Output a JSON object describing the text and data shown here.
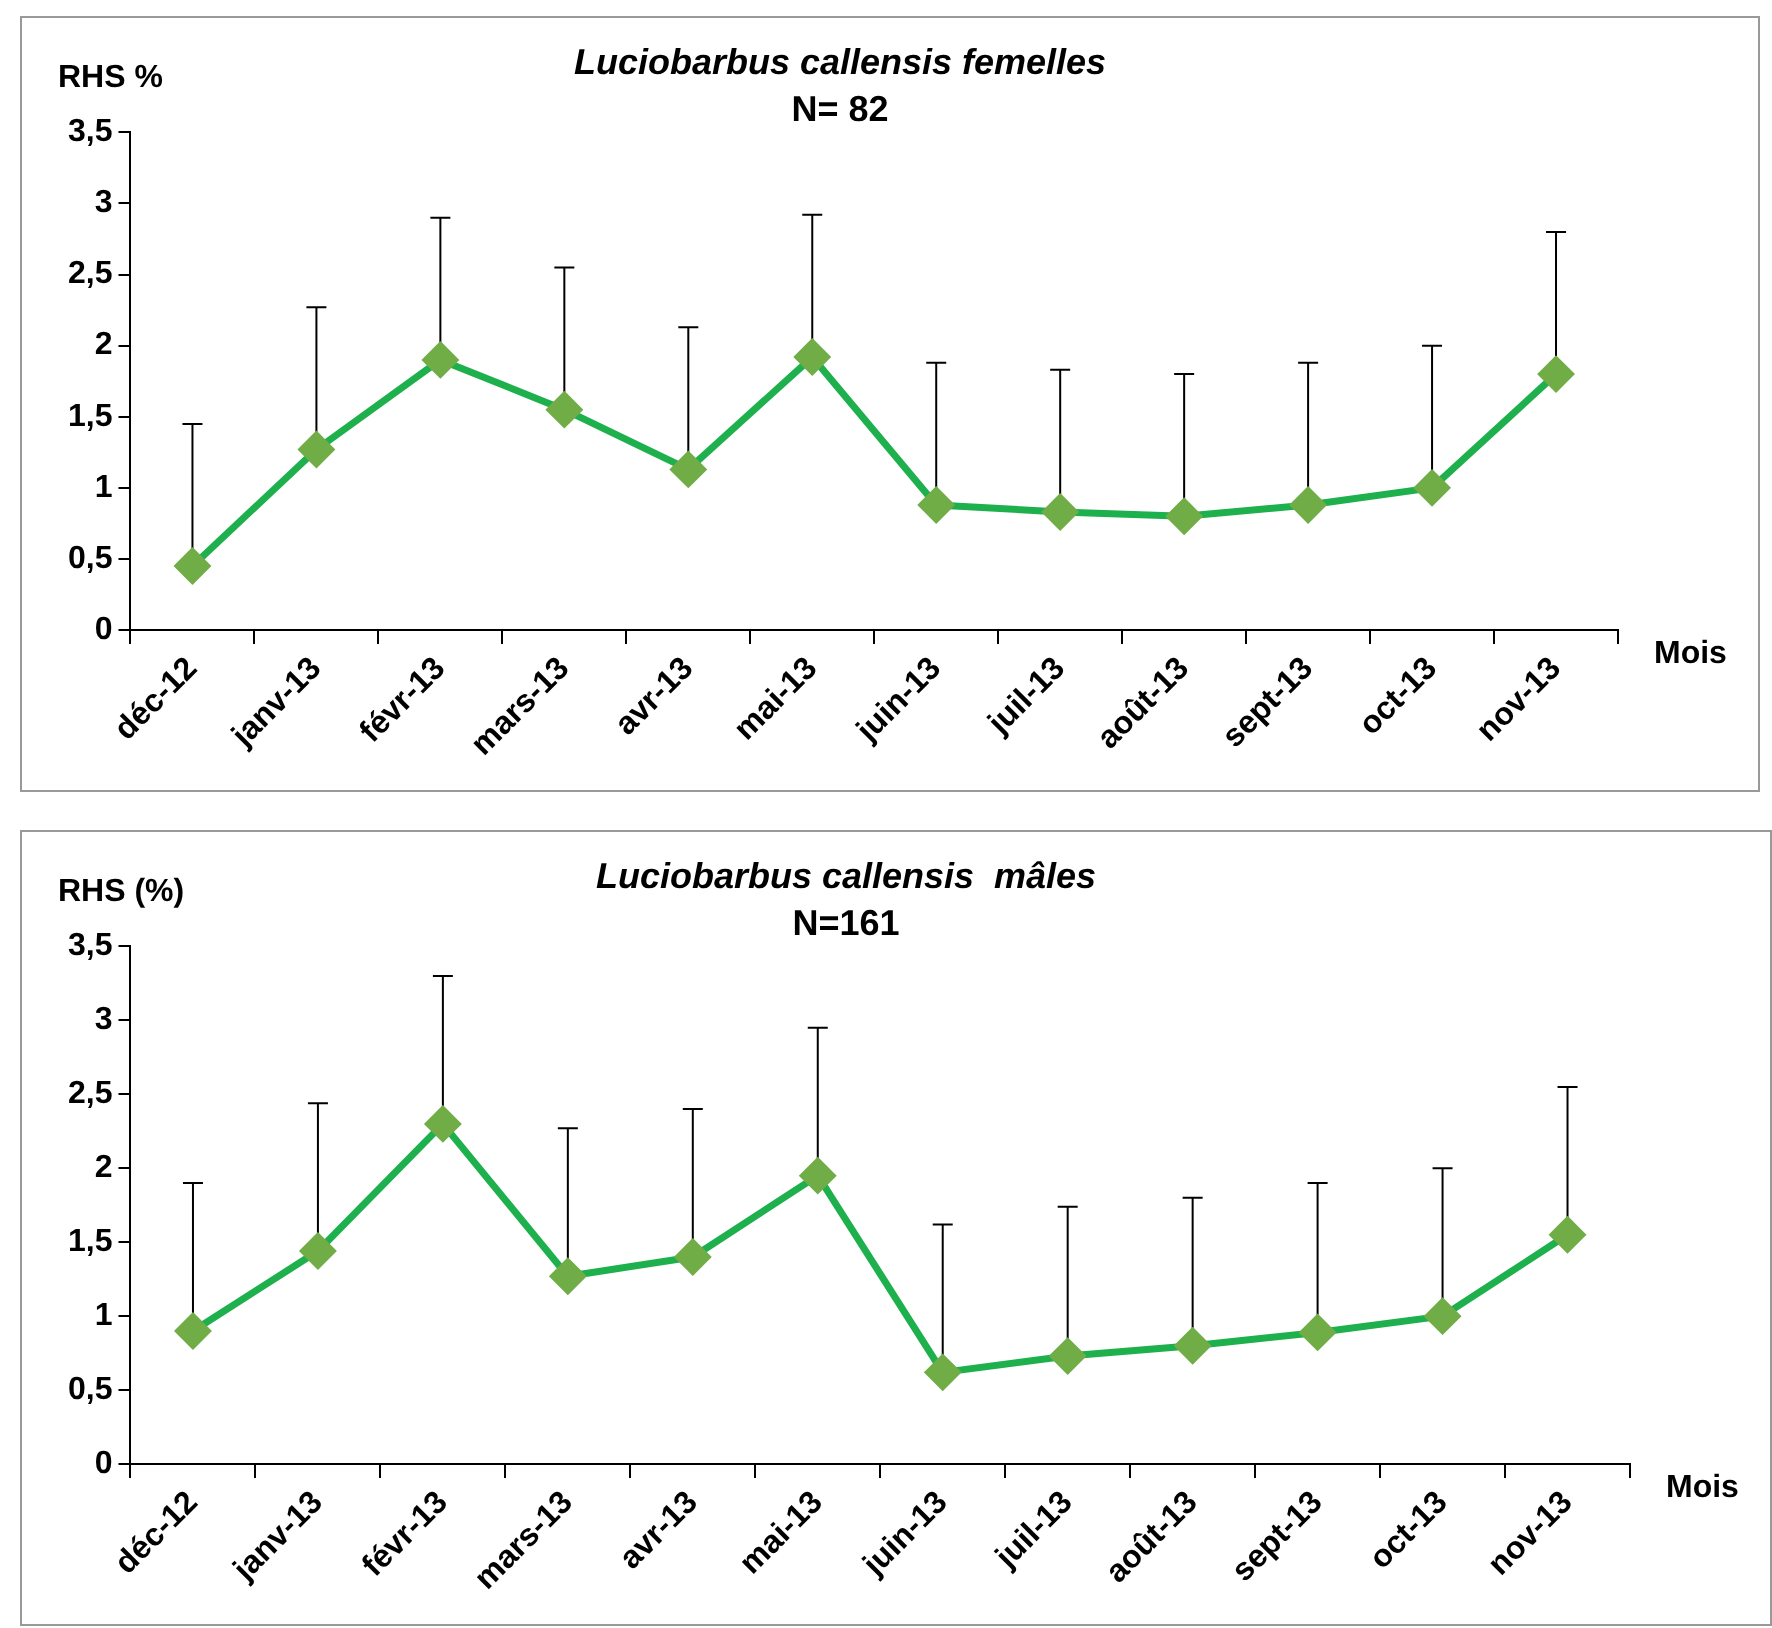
{
  "chart_data": [
    {
      "type": "line",
      "title": "Luciobarbus callensis femelles",
      "subtitle": "N= 82",
      "ylabel": "RHS %",
      "xlabel": "Mois",
      "categories": [
        "déc-12",
        "janv-13",
        "févr-13",
        "mars-13",
        "avr-13",
        "mai-13",
        "juin-13",
        "juil-13",
        "août-13",
        "sept-13",
        "oct-13",
        "nov-13"
      ],
      "series": [
        {
          "color": "#1db04d",
          "values": [
            0.45,
            1.27,
            1.9,
            1.55,
            1.13,
            1.92,
            0.88,
            0.83,
            0.8,
            0.88,
            1.0,
            1.8
          ],
          "errors": [
            [
              0.45,
              1.45
            ],
            [
              1.27,
              2.27
            ],
            [
              1.9,
              2.9
            ],
            [
              1.55,
              2.55
            ],
            [
              1.13,
              2.13
            ],
            [
              1.92,
              2.92
            ],
            [
              0.88,
              1.88
            ],
            [
              0.83,
              1.83
            ],
            [
              0.8,
              1.8
            ],
            [
              0.88,
              1.88
            ],
            [
              1.0,
              2.0
            ],
            [
              1.8,
              2.8
            ]
          ]
        }
      ],
      "ylim": [
        0,
        3.5
      ],
      "yticks": [
        0,
        {
          "value": 0.5,
          "label": "0,5"
        },
        1,
        {
          "value": 1.5,
          "label": "1,5"
        },
        2,
        {
          "value": 2.5,
          "label": "2,5"
        },
        3,
        {
          "value": 3.5,
          "label": "3,5"
        }
      ],
      "grid": false,
      "legend": false,
      "marker": "diamond",
      "line_style": "solid"
    },
    {
      "type": "line",
      "title": "Luciobarbus callensis  mâles",
      "subtitle": "N=161",
      "ylabel": "RHS (%)",
      "xlabel": "Mois",
      "categories": [
        "déc-12",
        "janv-13",
        "févr-13",
        "mars-13",
        "avr-13",
        "mai-13",
        "juin-13",
        "juil-13",
        "août-13",
        "sept-13",
        "oct-13",
        "nov-13"
      ],
      "series": [
        {
          "color": "#1db04d",
          "values": [
            0.9,
            1.44,
            2.3,
            1.27,
            1.4,
            1.95,
            0.62,
            0.73,
            0.8,
            0.89,
            1.0,
            1.55
          ],
          "errors": [
            [
              0.9,
              1.9
            ],
            [
              1.44,
              2.44
            ],
            [
              2.3,
              3.3
            ],
            [
              1.27,
              2.27
            ],
            [
              1.4,
              2.4
            ],
            [
              1.95,
              2.95
            ],
            [
              0.62,
              1.62
            ],
            [
              0.73,
              1.74
            ],
            [
              0.8,
              1.8
            ],
            [
              0.89,
              1.9
            ],
            [
              1.0,
              2.0
            ],
            [
              1.55,
              2.55
            ]
          ]
        }
      ],
      "ylim": [
        0,
        3.5
      ],
      "yticks": [
        0,
        {
          "value": 0.5,
          "label": "0,5"
        },
        1,
        {
          "value": 1.5,
          "label": "1,5"
        },
        2,
        {
          "value": 2.5,
          "label": "2,5"
        },
        3,
        {
          "value": 3.5,
          "label": "3,5"
        }
      ],
      "grid": false,
      "legend": false,
      "marker": "diamond",
      "line_style": "solid"
    }
  ]
}
